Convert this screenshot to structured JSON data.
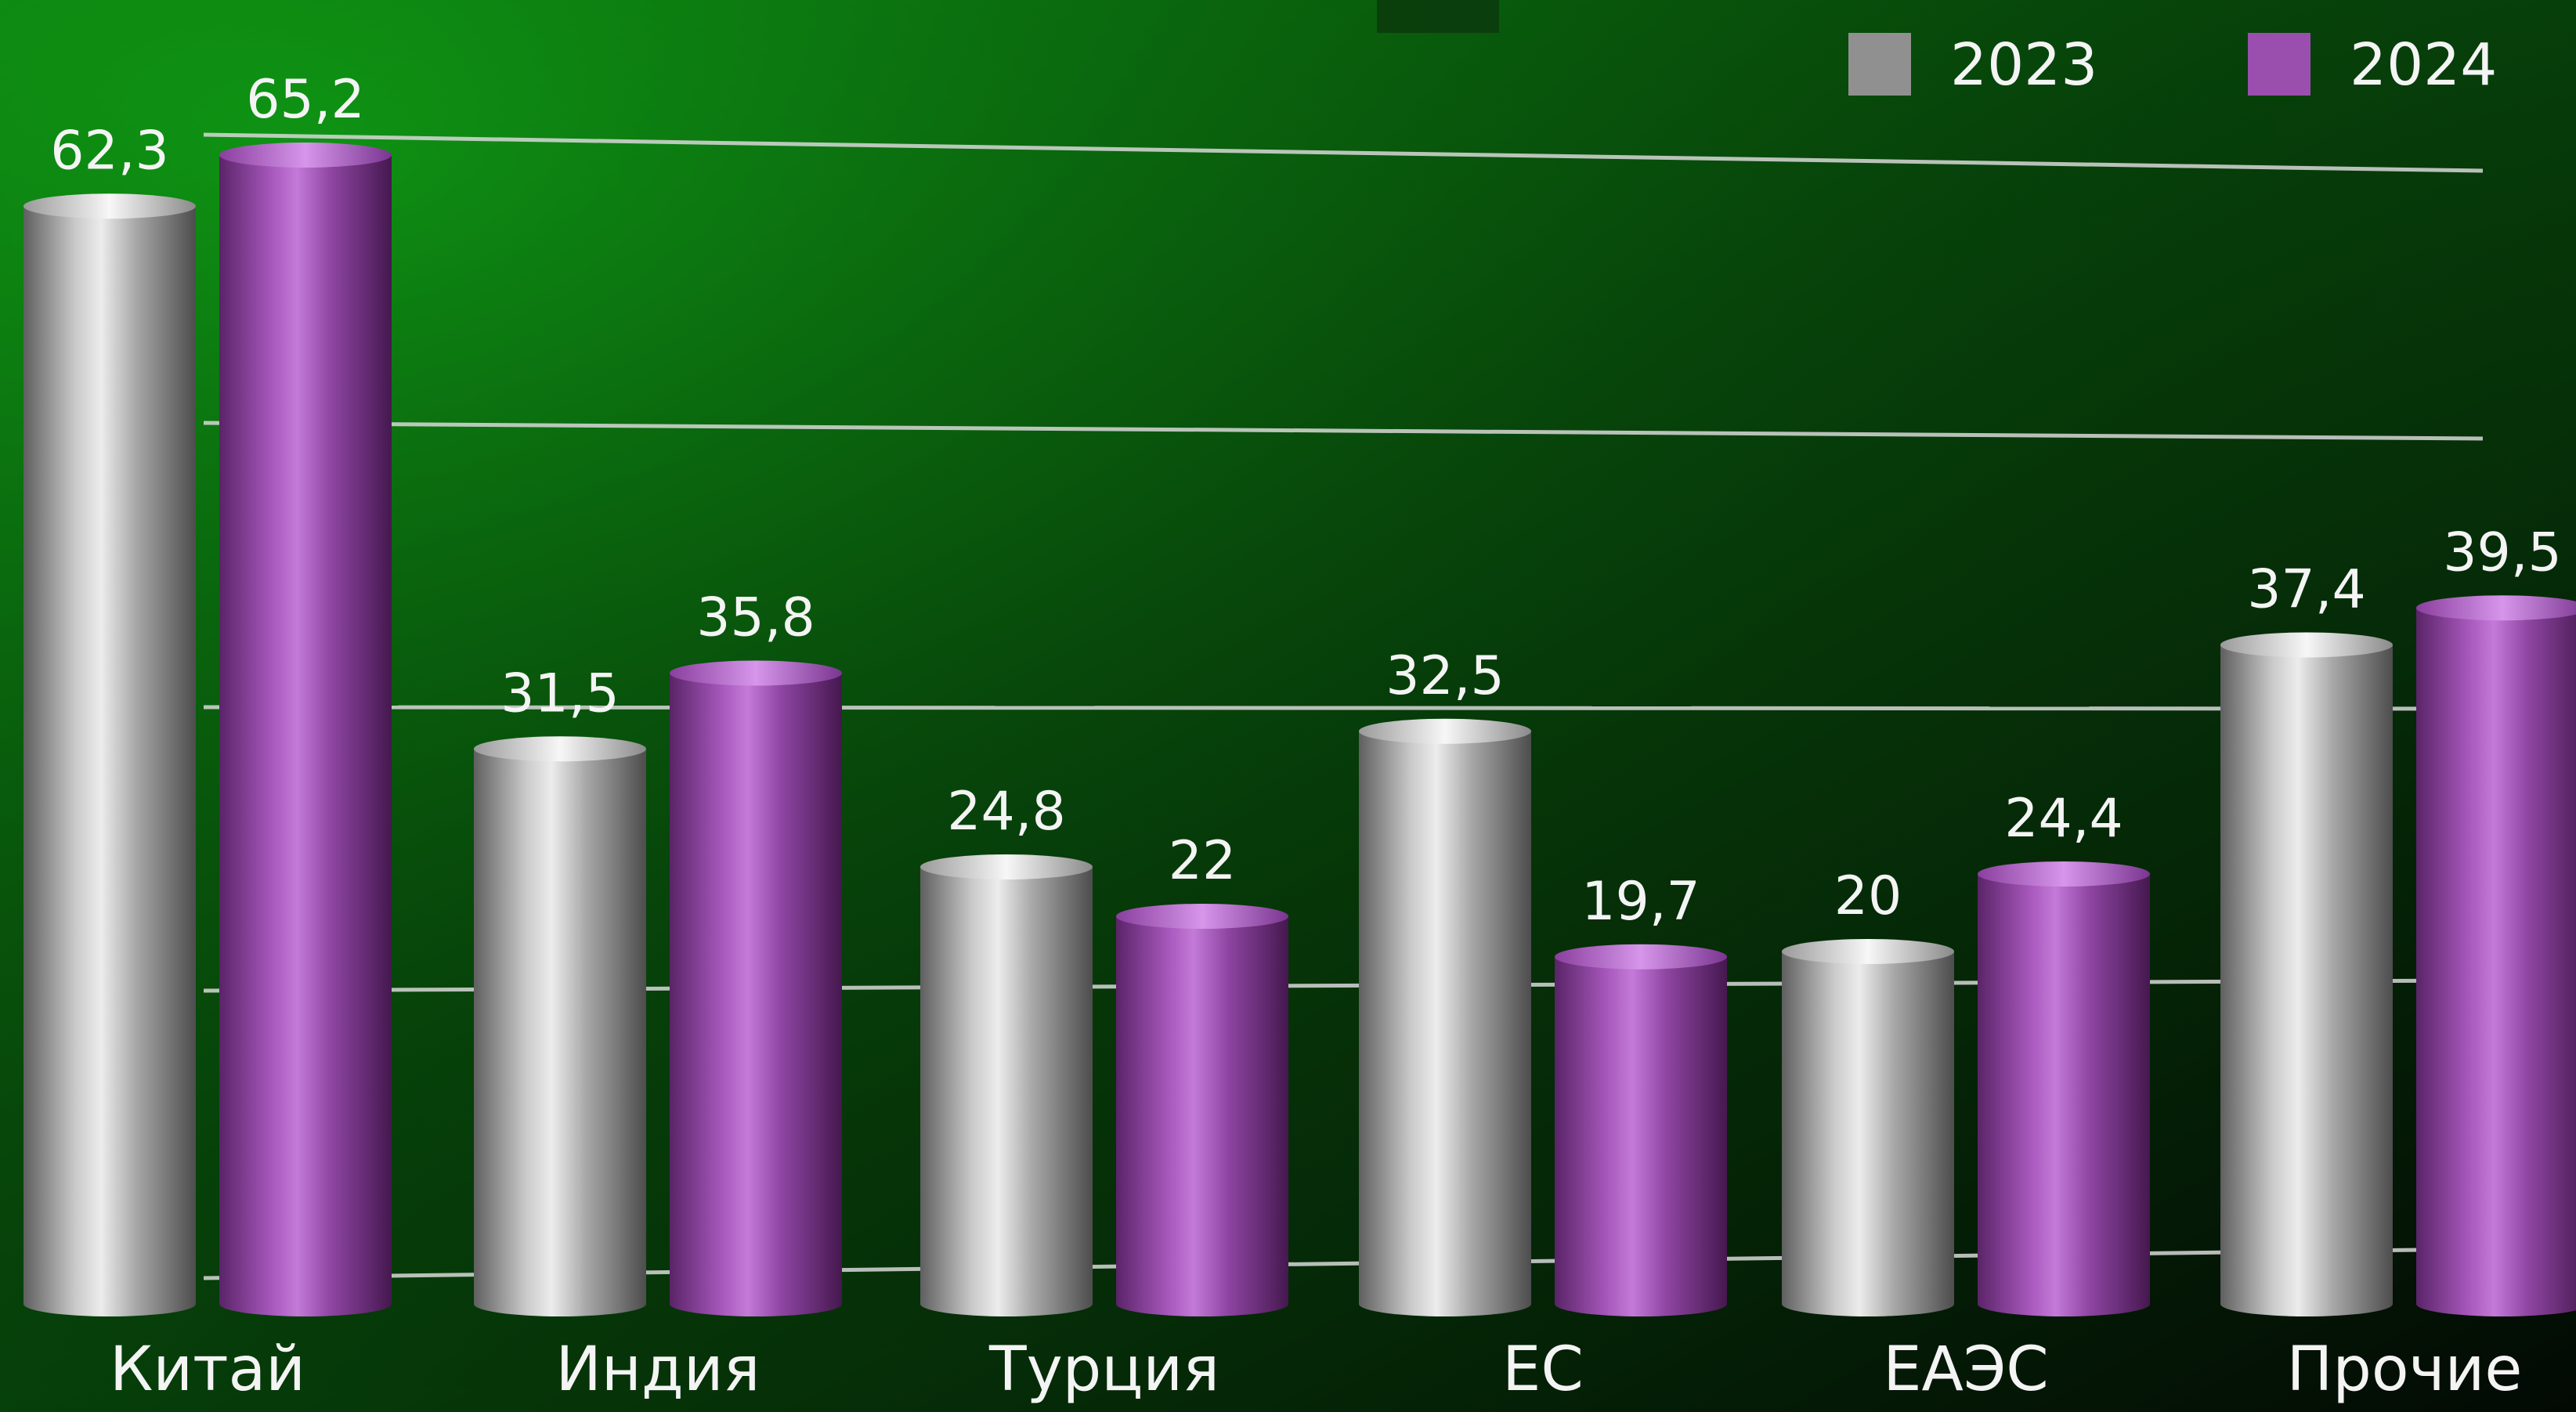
{
  "chart_data": {
    "type": "bar",
    "categories": [
      "Китай",
      "Индия",
      "Турция",
      "ЕС",
      "ЕАЭС",
      "Прочие"
    ],
    "series": [
      {
        "name": "2023",
        "values": [
          62.3,
          31.5,
          24.8,
          32.5,
          20,
          37.4
        ]
      },
      {
        "name": "2024",
        "values": [
          65.2,
          35.8,
          22,
          19.7,
          24.4,
          39.5
        ]
      }
    ],
    "data_labels": [
      [
        "62,3",
        "31,5",
        "24,8",
        "32,5",
        "20",
        "37,4"
      ],
      [
        "65,2",
        "35,8",
        "22",
        "19,7",
        "24,4",
        "39,5"
      ]
    ],
    "ylim": [
      0,
      70
    ],
    "gridlines": [
      0,
      16,
      32,
      48,
      64
    ],
    "legend_position": "top-right",
    "series_colors": [
      "#9a9a9a",
      "#9a4fae"
    ],
    "background_colors": [
      "#0a7a0e",
      "#062a08",
      "#040d05"
    ]
  }
}
